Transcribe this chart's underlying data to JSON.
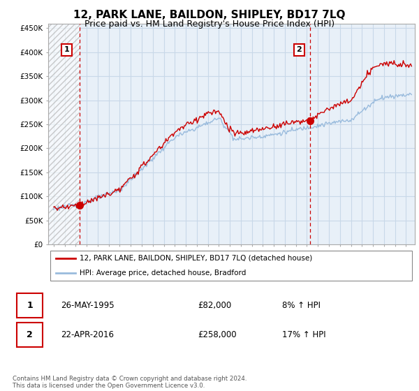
{
  "title": "12, PARK LANE, BAILDON, SHIPLEY, BD17 7LQ",
  "subtitle": "Price paid vs. HM Land Registry's House Price Index (HPI)",
  "ylabel_ticks": [
    "£0",
    "£50K",
    "£100K",
    "£150K",
    "£200K",
    "£250K",
    "£300K",
    "£350K",
    "£400K",
    "£450K"
  ],
  "ytick_values": [
    0,
    50000,
    100000,
    150000,
    200000,
    250000,
    300000,
    350000,
    400000,
    450000
  ],
  "ylim": [
    0,
    460000
  ],
  "xlim_start": 1992.5,
  "xlim_end": 2025.8,
  "sale1_date": 1995.38,
  "sale1_price": 82000,
  "sale1_label": "1",
  "sale2_date": 2016.3,
  "sale2_price": 258000,
  "sale2_label": "2",
  "legend_line1": "12, PARK LANE, BAILDON, SHIPLEY, BD17 7LQ (detached house)",
  "legend_line2": "HPI: Average price, detached house, Bradford",
  "table_row1": [
    "1",
    "26-MAY-1995",
    "£82,000",
    "8% ↑ HPI"
  ],
  "table_row2": [
    "2",
    "22-APR-2016",
    "£258,000",
    "17% ↑ HPI"
  ],
  "footer": "Contains HM Land Registry data © Crown copyright and database right 2024.\nThis data is licensed under the Open Government Licence v3.0.",
  "sale_color": "#cc0000",
  "hpi_color": "#99bbdd",
  "vline_color": "#cc0000",
  "bg_color": "#e8f0f8",
  "hatch_color": "#cccccc",
  "grid_color": "#c8d8e8",
  "title_fontsize": 11,
  "subtitle_fontsize": 9
}
